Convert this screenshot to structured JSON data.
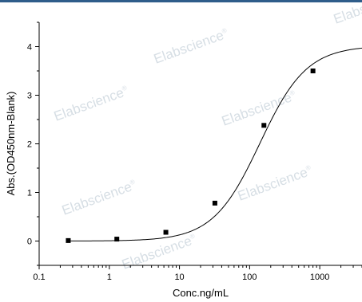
{
  "chart_data": {
    "type": "scatter",
    "title": "",
    "xlabel": "Conc.ng/mL",
    "ylabel": "Abs.(OD450nm-Blank)",
    "xscale": "log",
    "xlim": [
      0.1,
      4000
    ],
    "ylim": [
      -0.5,
      4.5
    ],
    "xticks": [
      0.1,
      1,
      10,
      100,
      1000
    ],
    "xtick_labels": [
      "0.1",
      "1",
      "10",
      "100",
      "1000"
    ],
    "yticks": [
      0,
      1,
      2,
      3,
      4
    ],
    "ytick_labels": [
      "0",
      "1",
      "2",
      "3",
      "4"
    ],
    "grid": false,
    "points": [
      {
        "x": 0.26,
        "y": 0.01
      },
      {
        "x": 1.28,
        "y": 0.04
      },
      {
        "x": 6.4,
        "y": 0.18
      },
      {
        "x": 32,
        "y": 0.78
      },
      {
        "x": 160,
        "y": 2.38
      },
      {
        "x": 800,
        "y": 3.5
      }
    ],
    "fit": {
      "type": "4PL",
      "bottom": 0.0,
      "top": 4.02,
      "ec50": 140,
      "hill": 1.3
    },
    "colors": {
      "marker": "#000000",
      "curve": "#000000",
      "watermark": "#c9d3dc",
      "top_band": "#2f5d8a"
    },
    "watermark_text": "Elabscience"
  }
}
